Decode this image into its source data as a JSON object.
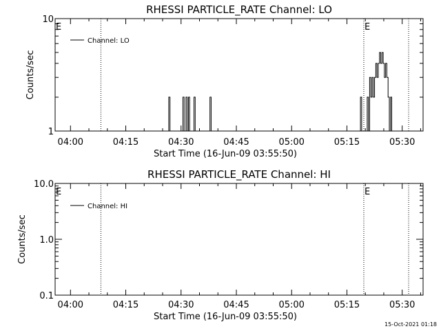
{
  "footer": {
    "timestamp": "15-Oct-2021 01:18"
  },
  "chart_data": [
    {
      "type": "line",
      "title": "RHESSI PARTICLE_RATE Channel: LO",
      "xlabel": "Start Time (16-Jun-09 03:55:50)",
      "ylabel": "Counts/sec",
      "yscale": "log",
      "ylim": [
        1,
        10
      ],
      "xlim": [
        "03:55:50",
        "05:35:40"
      ],
      "y_tick_labels": [
        "1",
        "10"
      ],
      "x_tick_labels": [
        "04:00",
        "04:15",
        "04:30",
        "04:45",
        "05:00",
        "05:15",
        "05:30"
      ],
      "vlines": [
        {
          "time": "04:08:15",
          "label": ""
        },
        {
          "time": "05:19:35",
          "label": "E"
        },
        {
          "time": "05:31:45",
          "label": ""
        }
      ],
      "edge_marker": "E",
      "legend": {
        "entries": [
          "Channel: LO"
        ],
        "position": "top-left"
      },
      "series": [
        {
          "name": "Channel: LO",
          "x": [
            "03:55:50",
            "04:26:20",
            "04:26:40",
            "04:27:00",
            "04:27:20",
            "04:30:30",
            "04:30:50",
            "04:31:20",
            "04:31:40",
            "04:32:00",
            "04:32:20",
            "04:33:10",
            "04:33:30",
            "04:33:50",
            "04:37:30",
            "04:37:50",
            "04:38:10",
            "05:18:20",
            "05:18:40",
            "05:19:00",
            "05:20:30",
            "05:20:50",
            "05:21:10",
            "05:21:30",
            "05:21:50",
            "05:22:10",
            "05:22:30",
            "05:22:50",
            "05:23:10",
            "05:23:30",
            "05:23:50",
            "05:24:10",
            "05:24:30",
            "05:24:50",
            "05:25:10",
            "05:25:30",
            "05:25:50",
            "05:26:10",
            "05:26:30",
            "05:26:50",
            "05:27:10",
            "05:27:30",
            "05:35:40"
          ],
          "y": [
            1,
            1,
            2,
            1,
            1,
            2,
            1,
            2,
            1,
            2,
            1,
            1,
            2,
            1,
            1,
            2,
            1,
            1,
            2,
            1,
            2,
            1,
            3,
            2,
            3,
            2,
            3,
            4,
            3,
            4,
            5,
            4,
            5,
            4,
            3,
            4,
            3,
            2,
            1,
            2,
            1,
            1,
            1
          ]
        }
      ]
    },
    {
      "type": "line",
      "title": "RHESSI PARTICLE_RATE Channel: HI",
      "xlabel": "Start Time (16-Jun-09 03:55:50)",
      "ylabel": "Counts/sec",
      "yscale": "log",
      "ylim": [
        0.1,
        10.0
      ],
      "xlim": [
        "03:55:50",
        "05:35:40"
      ],
      "y_tick_labels": [
        "0.1",
        "1.0",
        "10.0"
      ],
      "x_tick_labels": [
        "04:00",
        "04:15",
        "04:30",
        "04:45",
        "05:00",
        "05:15",
        "05:30"
      ],
      "vlines": [
        {
          "time": "04:08:15",
          "label": ""
        },
        {
          "time": "05:19:35",
          "label": "E"
        },
        {
          "time": "05:31:45",
          "label": ""
        }
      ],
      "edge_marker": "E",
      "legend": {
        "entries": [
          "Channel: HI"
        ],
        "position": "top-left"
      },
      "series": [
        {
          "name": "Channel: HI",
          "x": [],
          "y": []
        }
      ]
    }
  ]
}
